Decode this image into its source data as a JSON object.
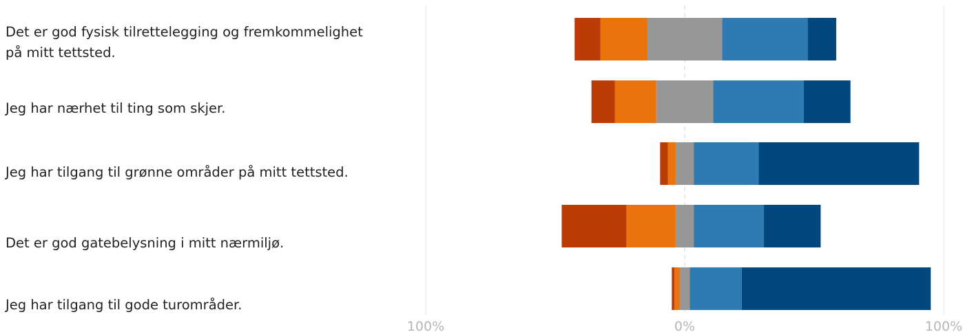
{
  "chart_data": {
    "type": "bar",
    "stacked": "diverging",
    "categories": [
      "Det er god fysisk tilrettelegging og fremkommelighet på mitt tettsted.",
      "Jeg har nærhet til ting som skjer.",
      "Jeg har tilgang til grønne områder på mitt tettsted.",
      "Det er god gatebelysning i mitt nærmiljø.",
      "Jeg har tilgang til gode turområder."
    ],
    "label_lines": [
      [
        "Det er god fysisk tilrettelegging og fremkommelighet",
        "på mitt tettsted."
      ],
      [
        "Jeg har nærhet til ting som skjer."
      ],
      [
        "Jeg har tilgang til grønne områder på mitt tettsted."
      ],
      [
        "Det er god gatebelysning i mitt nærmiljø."
      ],
      [
        "Jeg har tilgang til gode turområder."
      ]
    ],
    "series": [
      {
        "color": "#bc3c06",
        "side": "negative",
        "values": [
          10,
          9,
          3,
          25,
          1
        ]
      },
      {
        "color": "#eb730b",
        "side": "negative",
        "values": [
          18,
          16,
          3,
          19,
          2
        ]
      },
      {
        "color": "#979797",
        "side": "neutral",
        "values": [
          29,
          22,
          7,
          7,
          4
        ]
      },
      {
        "color": "#2e7ab3",
        "side": "positive",
        "values": [
          33,
          35,
          25,
          27,
          20
        ]
      },
      {
        "color": "#03477f",
        "side": "positive",
        "values": [
          11,
          18,
          62,
          22,
          73
        ]
      }
    ],
    "xlim": [
      -100,
      100
    ],
    "ticks": [
      {
        "value": -100,
        "label": "100%"
      },
      {
        "value": 0,
        "label": "0%"
      },
      {
        "value": 100,
        "label": "100%"
      }
    ],
    "grid": "vertical-light",
    "legend": "none"
  }
}
